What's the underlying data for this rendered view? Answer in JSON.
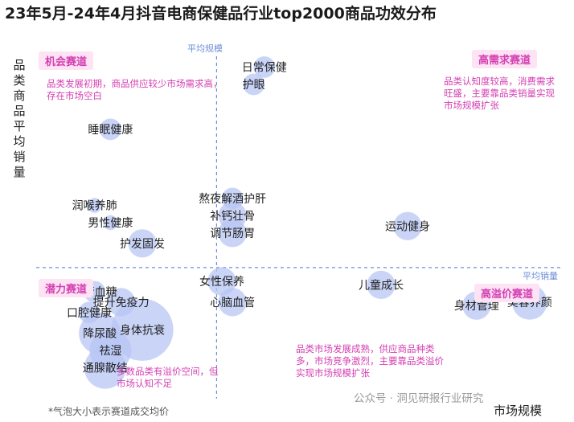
{
  "chart_data": {
    "type": "scatter",
    "title": "23年5月-24年4月抖音电商保健品行业top2000商品功效分布",
    "xlabel": "市场规模",
    "ylabel": "品类商品平均销量",
    "xlim": [
      0,
      100
    ],
    "ylim": [
      0,
      100
    ],
    "reference_lines": {
      "x": {
        "value": 34,
        "label": "平均规模"
      },
      "y": {
        "value": 37,
        "label": "平均销量"
      }
    },
    "points": [
      {
        "label": "日常保健",
        "x": 43,
        "y": 95,
        "size": 2
      },
      {
        "label": "护眼",
        "x": 41,
        "y": 90,
        "size": 2
      },
      {
        "label": "睡眠健康",
        "x": 14,
        "y": 77,
        "size": 2
      },
      {
        "label": "熬夜解酒护肝",
        "x": 37,
        "y": 57,
        "size": 2
      },
      {
        "label": "补钙壮骨",
        "x": 37,
        "y": 52,
        "size": 3
      },
      {
        "label": "调节肠胃",
        "x": 37,
        "y": 47,
        "size": 3
      },
      {
        "label": "润喉养肺",
        "x": 11,
        "y": 55,
        "size": 1
      },
      {
        "label": "男性健康",
        "x": 14,
        "y": 50,
        "size": 1
      },
      {
        "label": "护发固发",
        "x": 20,
        "y": 44,
        "size": 3
      },
      {
        "label": "运动健身",
        "x": 70,
        "y": 49,
        "size": 3
      },
      {
        "label": "女性保养",
        "x": 35,
        "y": 33,
        "size": 3
      },
      {
        "label": "心脑血管",
        "x": 37,
        "y": 27,
        "size": 3
      },
      {
        "label": "儿童成长",
        "x": 65,
        "y": 32,
        "size": 3
      },
      {
        "label": "身材管理",
        "x": 83,
        "y": 26,
        "size": 3
      },
      {
        "label": "美容养颜",
        "x": 93,
        "y": 27,
        "size": 4
      },
      {
        "label": "平衡血糖",
        "x": 11,
        "y": 30,
        "size": 2
      },
      {
        "label": "提升免疫力",
        "x": 16,
        "y": 27,
        "size": 3
      },
      {
        "label": "口腔健康",
        "x": 10,
        "y": 24,
        "size": 2
      },
      {
        "label": "身体抗衰",
        "x": 20,
        "y": 19,
        "size": 8
      },
      {
        "label": "降尿酸",
        "x": 12,
        "y": 18,
        "size": 5
      },
      {
        "label": "祛湿",
        "x": 14,
        "y": 13,
        "size": 5
      },
      {
        "label": "通腺散结",
        "x": 13,
        "y": 8,
        "size": 5
      }
    ],
    "quadrants": [
      {
        "name": "机会赛道",
        "description": "品类发展初期，商品供应较少市场需求高，存在市场空白"
      },
      {
        "name": "高需求赛道",
        "description": "品类认知度较高，消费需求旺盛，主要靠品类销量实现市场规模扩张"
      },
      {
        "name": "潜力赛道",
        "description": "多数品类有溢价空间，但市场认知不足"
      },
      {
        "name": "高溢价赛道",
        "description": "品类市场发展成熟，供应商品种类多，市场竞争激烈，主要靠品类溢价实现市场规模扩张"
      }
    ],
    "footnote": "*气泡大小表示赛道成交均价",
    "bubble_color": "#b7c6f4",
    "accent_color": "#d43fb2",
    "reference_color": "#6f8fd8"
  },
  "watermark": "公众号 · 洞见研报行业研究"
}
